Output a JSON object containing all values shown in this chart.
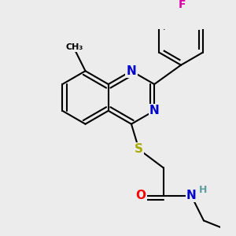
{
  "bg_color": "#ececec",
  "bond_color": "#000000",
  "bond_width": 1.5,
  "atom_colors": {
    "N": "#0000cc",
    "S": "#aaaa00",
    "O": "#ff0000",
    "F": "#dd00aa",
    "H": "#5f9ea0",
    "C": "#000000"
  },
  "font_size": 11,
  "figsize": [
    3.0,
    3.0
  ],
  "dpi": 100
}
